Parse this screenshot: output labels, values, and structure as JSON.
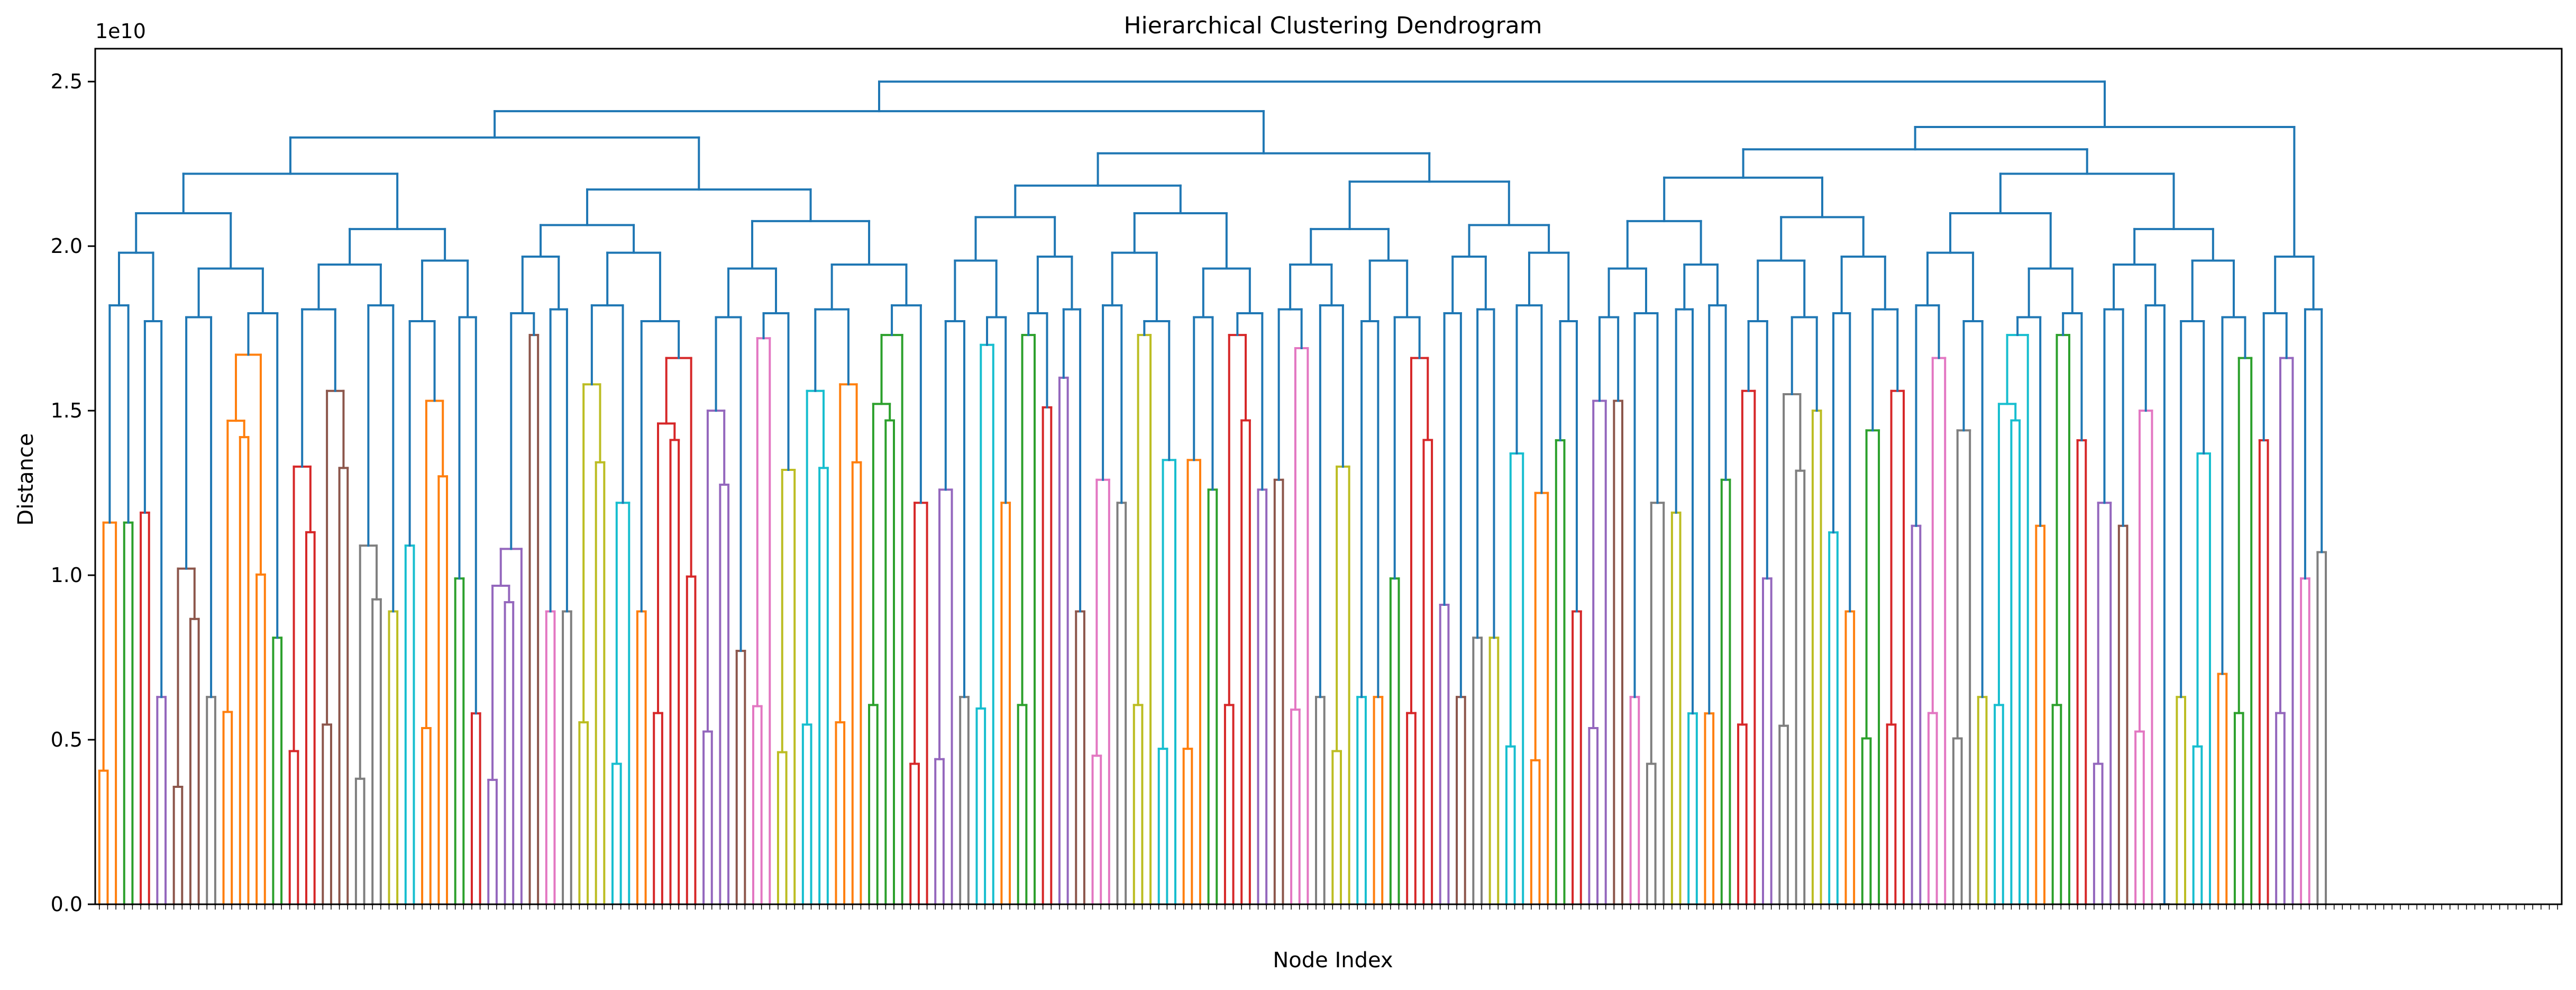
{
  "chart_data": {
    "type": "dendrogram",
    "title": "Hierarchical Clustering Dendrogram",
    "xlabel": "Node Index",
    "ylabel": "Distance",
    "y_scale_label": "1e10",
    "ylim": [
      0,
      2.6
    ],
    "y_ticks": [
      0.0,
      0.5,
      1.0,
      1.5,
      2.0,
      2.5
    ],
    "y_tick_labels": [
      "0.0",
      "0.5",
      "1.0",
      "1.5",
      "2.0",
      "2.5"
    ],
    "leaf_count": 298,
    "leaf_labels": "tiny rotated node indices (illegible at source resolution)",
    "above_threshold_color": "#1f77b4",
    "cluster_colors": [
      "#ff7f0e",
      "#2ca02c",
      "#d62728",
      "#9467bd",
      "#8c564b",
      "#e377c2",
      "#7f7f7f",
      "#bcbd22",
      "#17becf"
    ],
    "clusters": [
      {
        "color": "#ff7f0e",
        "height": 1.16,
        "leaves": 3
      },
      {
        "color": "#2ca02c",
        "height": 1.16,
        "leaves": 2
      },
      {
        "color": "#d62728",
        "height": 1.19,
        "leaves": 2
      },
      {
        "color": "#9467bd",
        "height": 0.63,
        "leaves": 2
      },
      {
        "color": "#8c564b",
        "height": 1.02,
        "leaves": 4
      },
      {
        "color": "#7f7f7f",
        "height": 0.63,
        "leaves": 2
      },
      {
        "color": "#ff7f0e",
        "height": 1.67,
        "leaves": 6
      },
      {
        "color": "#2ca02c",
        "height": 0.81,
        "leaves": 2
      },
      {
        "color": "#d62728",
        "height": 1.33,
        "leaves": 4
      },
      {
        "color": "#8c564b",
        "height": 1.56,
        "leaves": 4
      },
      {
        "color": "#7f7f7f",
        "height": 1.09,
        "leaves": 4
      },
      {
        "color": "#bcbd22",
        "height": 0.89,
        "leaves": 2
      },
      {
        "color": "#17becf",
        "height": 1.09,
        "leaves": 2
      },
      {
        "color": "#ff7f0e",
        "height": 1.53,
        "leaves": 4
      },
      {
        "color": "#2ca02c",
        "height": 0.99,
        "leaves": 2
      },
      {
        "color": "#d62728",
        "height": 0.58,
        "leaves": 2
      },
      {
        "color": "#9467bd",
        "height": 1.08,
        "leaves": 5
      },
      {
        "color": "#8c564b",
        "height": 1.73,
        "leaves": 2
      },
      {
        "color": "#e377c2",
        "height": 0.89,
        "leaves": 2
      },
      {
        "color": "#7f7f7f",
        "height": 0.89,
        "leaves": 2
      },
      {
        "color": "#bcbd22",
        "height": 1.58,
        "leaves": 4
      },
      {
        "color": "#17becf",
        "height": 1.22,
        "leaves": 3
      },
      {
        "color": "#ff7f0e",
        "height": 0.89,
        "leaves": 2
      },
      {
        "color": "#d62728",
        "height": 1.66,
        "leaves": 6
      },
      {
        "color": "#9467bd",
        "height": 1.5,
        "leaves": 4
      },
      {
        "color": "#8c564b",
        "height": 0.77,
        "leaves": 2
      },
      {
        "color": "#e377c2",
        "height": 1.72,
        "leaves": 3
      },
      {
        "color": "#bcbd22",
        "height": 1.32,
        "leaves": 3
      },
      {
        "color": "#17becf",
        "height": 1.56,
        "leaves": 4
      },
      {
        "color": "#ff7f0e",
        "height": 1.58,
        "leaves": 4
      },
      {
        "color": "#2ca02c",
        "height": 1.73,
        "leaves": 5
      },
      {
        "color": "#d62728",
        "height": 1.22,
        "leaves": 3
      },
      {
        "color": "#9467bd",
        "height": 1.26,
        "leaves": 3
      },
      {
        "color": "#7f7f7f",
        "height": 0.63,
        "leaves": 2
      },
      {
        "color": "#17becf",
        "height": 1.7,
        "leaves": 3
      },
      {
        "color": "#ff7f0e",
        "height": 1.22,
        "leaves": 2
      },
      {
        "color": "#2ca02c",
        "height": 1.73,
        "leaves": 3
      },
      {
        "color": "#d62728",
        "height": 1.51,
        "leaves": 2
      },
      {
        "color": "#9467bd",
        "height": 1.6,
        "leaves": 2
      },
      {
        "color": "#8c564b",
        "height": 0.89,
        "leaves": 2
      },
      {
        "color": "#e377c2",
        "height": 1.29,
        "leaves": 3
      },
      {
        "color": "#7f7f7f",
        "height": 1.22,
        "leaves": 2
      },
      {
        "color": "#bcbd22",
        "height": 1.73,
        "leaves": 3
      },
      {
        "color": "#17becf",
        "height": 1.35,
        "leaves": 3
      },
      {
        "color": "#ff7f0e",
        "height": 1.35,
        "leaves": 3
      },
      {
        "color": "#2ca02c",
        "height": 1.26,
        "leaves": 2
      },
      {
        "color": "#d62728",
        "height": 1.73,
        "leaves": 4
      },
      {
        "color": "#9467bd",
        "height": 1.26,
        "leaves": 2
      },
      {
        "color": "#8c564b",
        "height": 1.29,
        "leaves": 2
      },
      {
        "color": "#e377c2",
        "height": 1.69,
        "leaves": 3
      },
      {
        "color": "#7f7f7f",
        "height": 0.63,
        "leaves": 2
      },
      {
        "color": "#bcbd22",
        "height": 1.33,
        "leaves": 3
      },
      {
        "color": "#17becf",
        "height": 0.63,
        "leaves": 2
      },
      {
        "color": "#ff7f0e",
        "height": 0.63,
        "leaves": 2
      },
      {
        "color": "#2ca02c",
        "height": 0.99,
        "leaves": 2
      },
      {
        "color": "#d62728",
        "height": 1.66,
        "leaves": 4
      },
      {
        "color": "#9467bd",
        "height": 0.91,
        "leaves": 2
      },
      {
        "color": "#8c564b",
        "height": 0.63,
        "leaves": 2
      },
      {
        "color": "#7f7f7f",
        "height": 0.81,
        "leaves": 2
      },
      {
        "color": "#bcbd22",
        "height": 0.81,
        "leaves": 2
      },
      {
        "color": "#17becf",
        "height": 1.37,
        "leaves": 3
      },
      {
        "color": "#ff7f0e",
        "height": 1.25,
        "leaves": 3
      },
      {
        "color": "#2ca02c",
        "height": 1.41,
        "leaves": 2
      },
      {
        "color": "#d62728",
        "height": 0.89,
        "leaves": 2
      },
      {
        "color": "#9467bd",
        "height": 1.53,
        "leaves": 3
      },
      {
        "color": "#8c564b",
        "height": 1.53,
        "leaves": 2
      },
      {
        "color": "#e377c2",
        "height": 0.63,
        "leaves": 2
      },
      {
        "color": "#7f7f7f",
        "height": 1.22,
        "leaves": 3
      },
      {
        "color": "#bcbd22",
        "height": 1.19,
        "leaves": 2
      },
      {
        "color": "#17becf",
        "height": 0.58,
        "leaves": 2
      },
      {
        "color": "#ff7f0e",
        "height": 0.58,
        "leaves": 2
      },
      {
        "color": "#2ca02c",
        "height": 1.29,
        "leaves": 2
      },
      {
        "color": "#d62728",
        "height": 1.56,
        "leaves": 3
      },
      {
        "color": "#9467bd",
        "height": 0.99,
        "leaves": 2
      },
      {
        "color": "#7f7f7f",
        "height": 1.55,
        "leaves": 4
      },
      {
        "color": "#bcbd22",
        "height": 1.5,
        "leaves": 2
      },
      {
        "color": "#17becf",
        "height": 1.13,
        "leaves": 2
      },
      {
        "color": "#ff7f0e",
        "height": 0.89,
        "leaves": 2
      },
      {
        "color": "#2ca02c",
        "height": 1.44,
        "leaves": 3
      },
      {
        "color": "#d62728",
        "height": 1.56,
        "leaves": 3
      },
      {
        "color": "#9467bd",
        "height": 1.15,
        "leaves": 2
      },
      {
        "color": "#e377c2",
        "height": 1.66,
        "leaves": 3
      },
      {
        "color": "#7f7f7f",
        "height": 1.44,
        "leaves": 3
      },
      {
        "color": "#bcbd22",
        "height": 0.63,
        "leaves": 2
      },
      {
        "color": "#17becf",
        "height": 1.73,
        "leaves": 5
      },
      {
        "color": "#ff7f0e",
        "height": 1.15,
        "leaves": 2
      },
      {
        "color": "#2ca02c",
        "height": 1.73,
        "leaves": 3
      },
      {
        "color": "#d62728",
        "height": 1.41,
        "leaves": 2
      },
      {
        "color": "#9467bd",
        "height": 1.22,
        "leaves": 3
      },
      {
        "color": "#8c564b",
        "height": 1.15,
        "leaves": 2
      },
      {
        "color": "#e377c2",
        "height": 1.5,
        "leaves": 3
      },
      {
        "color": "#7f7f7f",
        "height": 0.0,
        "leaves": 2
      },
      {
        "color": "#bcbd22",
        "height": 0.63,
        "leaves": 2
      },
      {
        "color": "#17becf",
        "height": 1.37,
        "leaves": 3
      },
      {
        "color": "#ff7f0e",
        "height": 0.7,
        "leaves": 2
      },
      {
        "color": "#2ca02c",
        "height": 1.66,
        "leaves": 3
      },
      {
        "color": "#d62728",
        "height": 1.41,
        "leaves": 2
      },
      {
        "color": "#9467bd",
        "height": 1.66,
        "leaves": 3
      },
      {
        "color": "#e377c2",
        "height": 0.99,
        "leaves": 2
      },
      {
        "color": "#7f7f7f",
        "height": 1.07,
        "leaves": 2
      }
    ],
    "upper_merge_heights": [
      2.5,
      2.48,
      2.43,
      2.41,
      2.39,
      2.37,
      2.35,
      2.33,
      2.3,
      2.27,
      2.25,
      2.22,
      2.2,
      2.16,
      2.13,
      2.1,
      2.06,
      2.04,
      2.01,
      1.98,
      1.94,
      1.9,
      1.86,
      1.82
    ]
  }
}
